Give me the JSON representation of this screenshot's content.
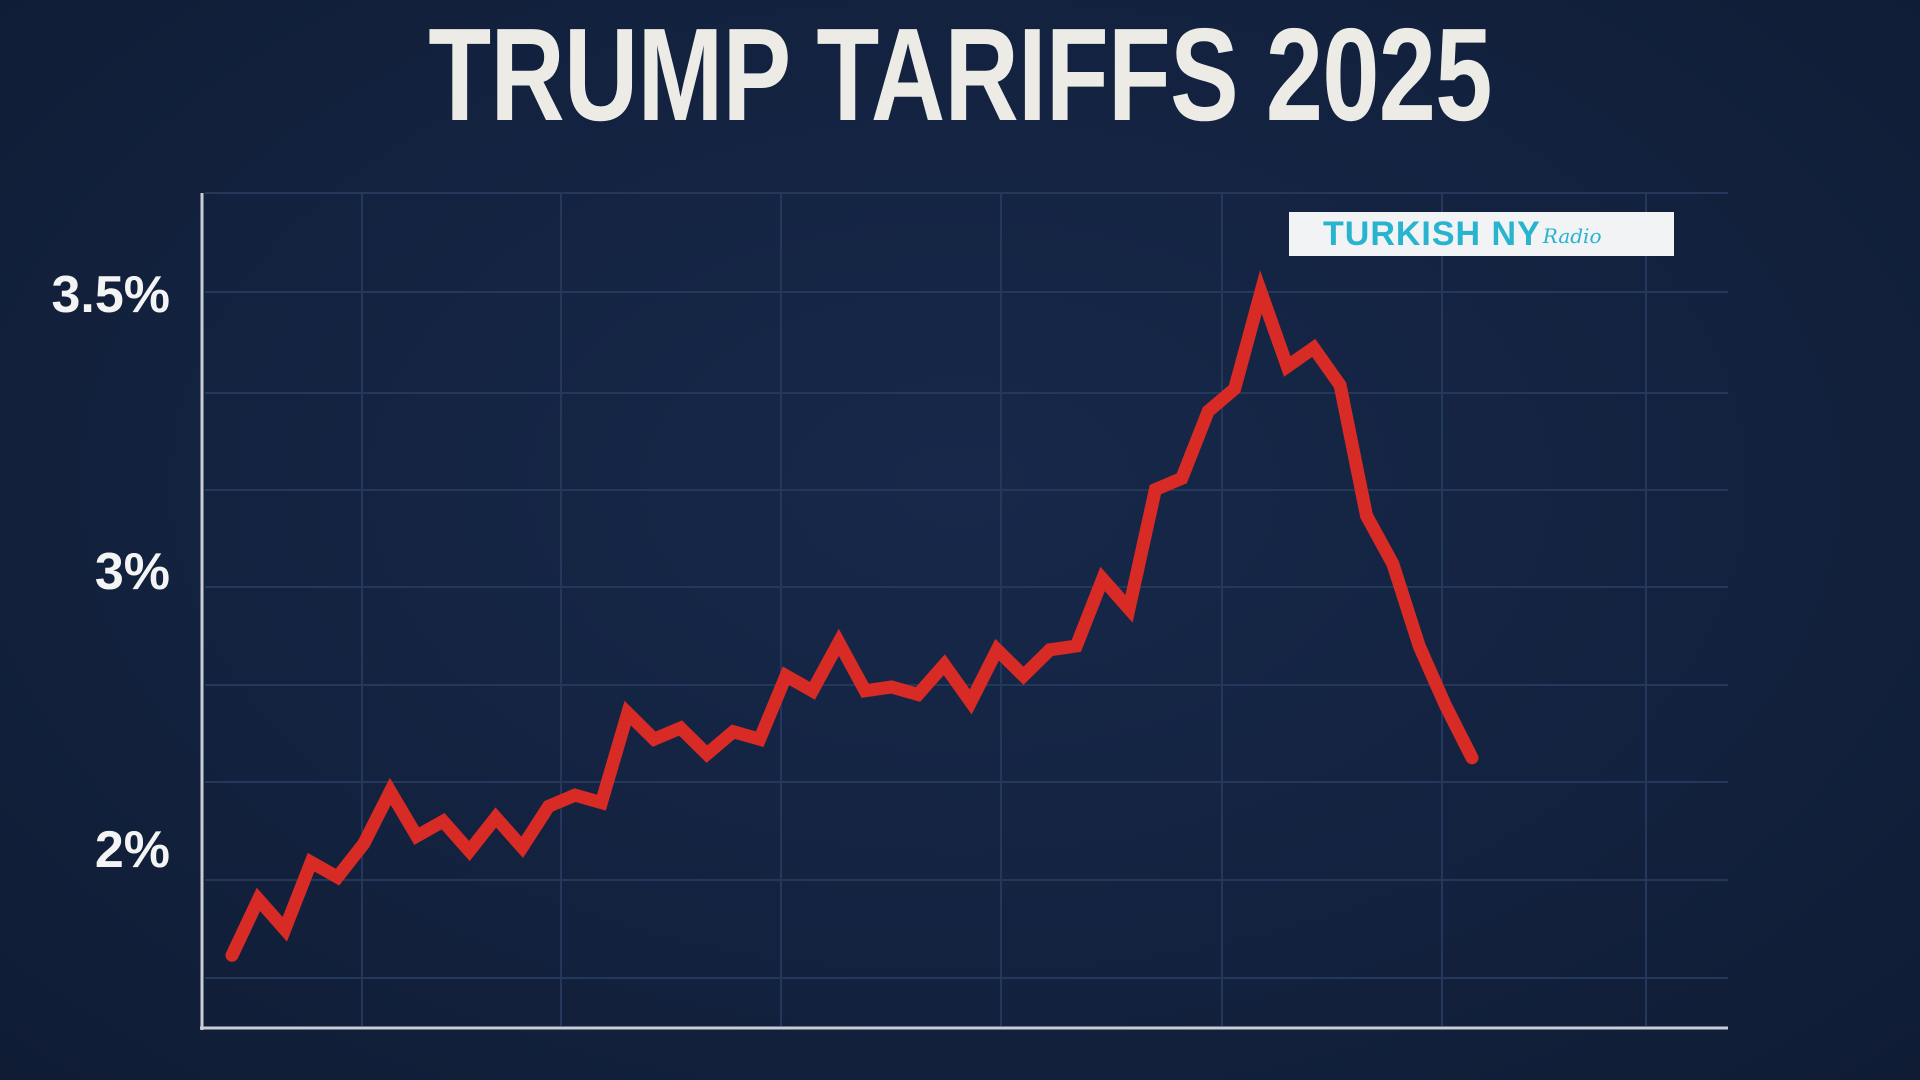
{
  "chart_data": {
    "type": "line",
    "title": "TRUMP TARIFFS 2025",
    "xlabel": "",
    "ylabel": "",
    "y_ticks": [
      "3.5%",
      "3%",
      "2%"
    ],
    "ylim": [
      1.7,
      3.65
    ],
    "grid": true,
    "legend": "none",
    "series": [
      {
        "color": "#d92b26",
        "values": [
          1.72,
          1.87,
          1.79,
          1.97,
          1.93,
          2.02,
          2.16,
          2.04,
          2.08,
          2.0,
          2.09,
          2.01,
          2.12,
          2.15,
          2.13,
          2.37,
          2.3,
          2.33,
          2.26,
          2.32,
          2.3,
          2.47,
          2.43,
          2.56,
          2.43,
          2.44,
          2.42,
          2.5,
          2.4,
          2.54,
          2.47,
          2.54,
          2.55,
          2.73,
          2.65,
          2.97,
          3.0,
          3.18,
          3.24,
          3.5,
          3.3,
          3.35,
          3.25,
          2.9,
          2.77,
          2.55,
          2.39,
          2.25
        ]
      }
    ]
  },
  "logo": {
    "main": "TURKISH NY",
    "script": "Radio"
  }
}
